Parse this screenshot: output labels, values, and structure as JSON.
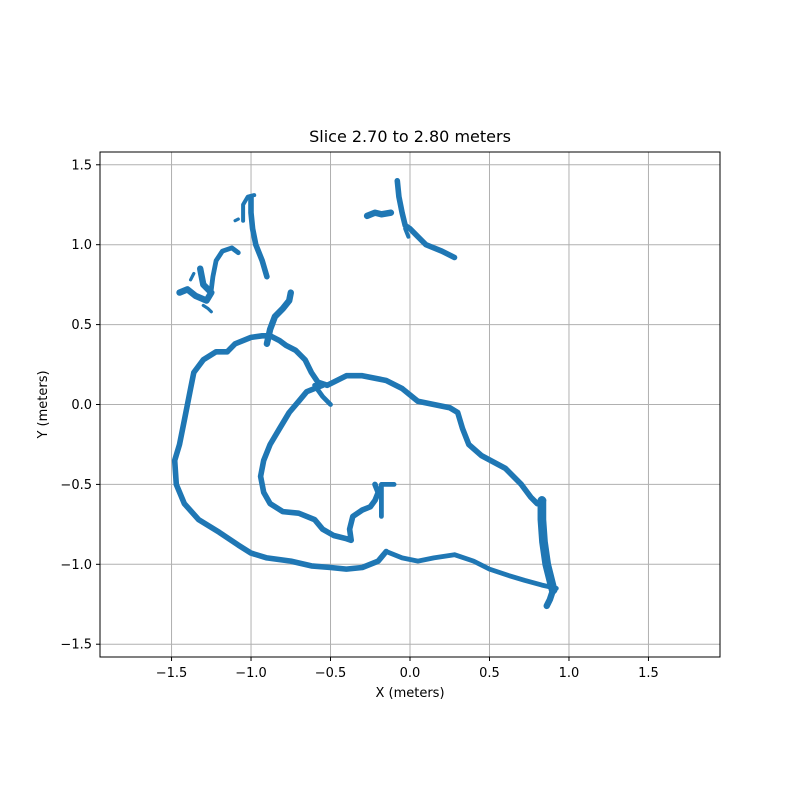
{
  "chart_data": {
    "type": "scatter",
    "title": "Slice 2.70 to 2.80 meters",
    "xlabel": "X (meters)",
    "ylabel": "Y (meters)",
    "xlim": [
      -1.95,
      1.95
    ],
    "ylim": [
      -1.58,
      1.58
    ],
    "xticks": [
      -1.5,
      -1.0,
      -0.5,
      0.0,
      0.5,
      1.0,
      1.5
    ],
    "yticks": [
      -1.5,
      -1.0,
      -0.5,
      0.0,
      0.5,
      1.0,
      1.5
    ],
    "xtick_labels": [
      "−1.5",
      "−1.0",
      "−0.5",
      "0.0",
      "0.5",
      "1.0",
      "1.5"
    ],
    "ytick_labels": [
      "−1.5",
      "−1.0",
      "−0.5",
      "0.0",
      "0.5",
      "1.0",
      "1.5"
    ],
    "grid": true,
    "color": "#1f77b4",
    "series": [
      {
        "width": 0.035,
        "points": [
          [
            -1.15,
            0.33
          ],
          [
            -1.1,
            0.38
          ],
          [
            -1.0,
            0.42
          ],
          [
            -0.93,
            0.43
          ],
          [
            -0.88,
            0.43
          ],
          [
            -0.82,
            0.4
          ],
          [
            -0.78,
            0.37
          ],
          [
            -0.72,
            0.34
          ],
          [
            -0.66,
            0.28
          ],
          [
            -0.62,
            0.2
          ],
          [
            -0.58,
            0.14
          ],
          [
            -0.52,
            0.12
          ],
          [
            -0.4,
            0.18
          ],
          [
            -0.3,
            0.18
          ],
          [
            -0.15,
            0.15
          ],
          [
            -0.05,
            0.1
          ],
          [
            0.05,
            0.02
          ],
          [
            0.15,
            0.0
          ],
          [
            0.25,
            -0.02
          ],
          [
            0.3,
            -0.05
          ],
          [
            0.33,
            -0.15
          ],
          [
            0.37,
            -0.25
          ],
          [
            0.45,
            -0.32
          ],
          [
            0.6,
            -0.4
          ],
          [
            0.7,
            -0.5
          ],
          [
            0.76,
            -0.58
          ],
          [
            0.8,
            -0.62
          ],
          [
            0.84,
            -0.6
          ]
        ]
      },
      {
        "width": 0.035,
        "points": [
          [
            -1.15,
            0.33
          ],
          [
            -1.22,
            0.33
          ],
          [
            -1.3,
            0.28
          ],
          [
            -1.36,
            0.2
          ],
          [
            -1.38,
            0.1
          ],
          [
            -1.42,
            -0.1
          ],
          [
            -1.45,
            -0.25
          ],
          [
            -1.48,
            -0.35
          ],
          [
            -1.47,
            -0.5
          ],
          [
            -1.42,
            -0.62
          ],
          [
            -1.33,
            -0.72
          ],
          [
            -1.2,
            -0.8
          ],
          [
            -1.08,
            -0.88
          ],
          [
            -1.0,
            -0.93
          ],
          [
            -0.9,
            -0.96
          ],
          [
            -0.75,
            -0.98
          ],
          [
            -0.62,
            -1.01
          ],
          [
            -0.5,
            -1.02
          ],
          [
            -0.4,
            -1.03
          ],
          [
            -0.3,
            -1.02
          ],
          [
            -0.2,
            -0.98
          ],
          [
            -0.15,
            -0.92
          ]
        ]
      },
      {
        "width": 0.03,
        "points": [
          [
            -0.15,
            -0.92
          ],
          [
            -0.05,
            -0.96
          ],
          [
            0.05,
            -0.98
          ],
          [
            0.15,
            -0.96
          ],
          [
            0.28,
            -0.94
          ],
          [
            0.4,
            -0.98
          ],
          [
            0.5,
            -1.03
          ],
          [
            0.62,
            -1.07
          ],
          [
            0.72,
            -1.1
          ],
          [
            0.83,
            -1.13
          ],
          [
            0.92,
            -1.15
          ]
        ]
      },
      {
        "width": 0.055,
        "points": [
          [
            0.9,
            -1.16
          ],
          [
            0.86,
            -1.0
          ],
          [
            0.84,
            -0.86
          ],
          [
            0.83,
            -0.72
          ],
          [
            0.83,
            -0.6
          ]
        ]
      },
      {
        "width": 0.04,
        "points": [
          [
            0.9,
            -1.16
          ],
          [
            0.88,
            -1.22
          ],
          [
            0.86,
            -1.26
          ]
        ]
      },
      {
        "width": 0.035,
        "points": [
          [
            -0.55,
            0.12
          ],
          [
            -0.65,
            0.08
          ],
          [
            -0.7,
            0.02
          ],
          [
            -0.76,
            -0.05
          ],
          [
            -0.82,
            -0.15
          ],
          [
            -0.88,
            -0.25
          ],
          [
            -0.92,
            -0.35
          ],
          [
            -0.94,
            -0.45
          ],
          [
            -0.92,
            -0.55
          ],
          [
            -0.88,
            -0.62
          ],
          [
            -0.8,
            -0.67
          ],
          [
            -0.7,
            -0.68
          ],
          [
            -0.6,
            -0.72
          ],
          [
            -0.55,
            -0.78
          ],
          [
            -0.48,
            -0.82
          ],
          [
            -0.4,
            -0.84
          ],
          [
            -0.37,
            -0.85
          ],
          [
            -0.38,
            -0.78
          ],
          [
            -0.36,
            -0.7
          ],
          [
            -0.3,
            -0.66
          ],
          [
            -0.25,
            -0.64
          ],
          [
            -0.22,
            -0.6
          ],
          [
            -0.2,
            -0.55
          ],
          [
            -0.22,
            -0.5
          ]
        ]
      },
      {
        "width": 0.03,
        "points": [
          [
            -0.18,
            -0.7
          ],
          [
            -0.18,
            -0.6
          ],
          [
            -0.18,
            -0.5
          ],
          [
            -0.15,
            -0.5
          ],
          [
            -0.1,
            -0.5
          ]
        ]
      },
      {
        "width": 0.03,
        "points": [
          [
            -0.6,
            0.12
          ],
          [
            -0.55,
            0.05
          ],
          [
            -0.5,
            0.0
          ]
        ]
      },
      {
        "width": 0.04,
        "points": [
          [
            -0.9,
            0.38
          ],
          [
            -0.88,
            0.47
          ],
          [
            -0.85,
            0.55
          ],
          [
            -0.8,
            0.6
          ],
          [
            -0.76,
            0.65
          ],
          [
            -0.75,
            0.7
          ]
        ]
      },
      {
        "width": 0.035,
        "points": [
          [
            -1.0,
            1.3
          ],
          [
            -1.0,
            1.2
          ],
          [
            -0.99,
            1.1
          ],
          [
            -0.97,
            1.0
          ],
          [
            -0.93,
            0.9
          ],
          [
            -0.9,
            0.8
          ]
        ]
      },
      {
        "width": 0.025,
        "points": [
          [
            -1.05,
            1.15
          ],
          [
            -1.05,
            1.25
          ],
          [
            -1.02,
            1.3
          ],
          [
            -0.98,
            1.31
          ]
        ]
      },
      {
        "width": 0.04,
        "points": [
          [
            -1.32,
            0.85
          ],
          [
            -1.3,
            0.75
          ],
          [
            -1.25,
            0.7
          ],
          [
            -1.28,
            0.65
          ],
          [
            -1.35,
            0.68
          ],
          [
            -1.4,
            0.72
          ],
          [
            -1.45,
            0.7
          ]
        ]
      },
      {
        "width": 0.03,
        "points": [
          [
            -1.25,
            0.72
          ],
          [
            -1.24,
            0.8
          ],
          [
            -1.22,
            0.9
          ],
          [
            -1.18,
            0.96
          ],
          [
            -1.12,
            0.98
          ],
          [
            -1.08,
            0.95
          ]
        ]
      },
      {
        "width": 0.02,
        "points": [
          [
            -1.3,
            0.62
          ],
          [
            -1.27,
            0.6
          ],
          [
            -1.25,
            0.58
          ]
        ]
      },
      {
        "width": 0.02,
        "points": [
          [
            -1.38,
            0.78
          ],
          [
            -1.36,
            0.82
          ]
        ]
      },
      {
        "width": 0.02,
        "points": [
          [
            -1.1,
            1.15
          ],
          [
            -1.08,
            1.16
          ]
        ]
      },
      {
        "width": 0.04,
        "points": [
          [
            -0.27,
            1.18
          ],
          [
            -0.22,
            1.2
          ],
          [
            -0.18,
            1.19
          ],
          [
            -0.12,
            1.2
          ]
        ]
      },
      {
        "width": 0.035,
        "points": [
          [
            -0.08,
            1.4
          ],
          [
            -0.07,
            1.3
          ],
          [
            -0.05,
            1.2
          ],
          [
            -0.03,
            1.12
          ],
          [
            0.0,
            1.1
          ],
          [
            0.05,
            1.05
          ],
          [
            0.1,
            1.0
          ],
          [
            0.2,
            0.96
          ],
          [
            0.28,
            0.92
          ]
        ]
      },
      {
        "width": 0.025,
        "points": [
          [
            -0.03,
            1.1
          ],
          [
            -0.01,
            1.05
          ]
        ]
      }
    ]
  }
}
